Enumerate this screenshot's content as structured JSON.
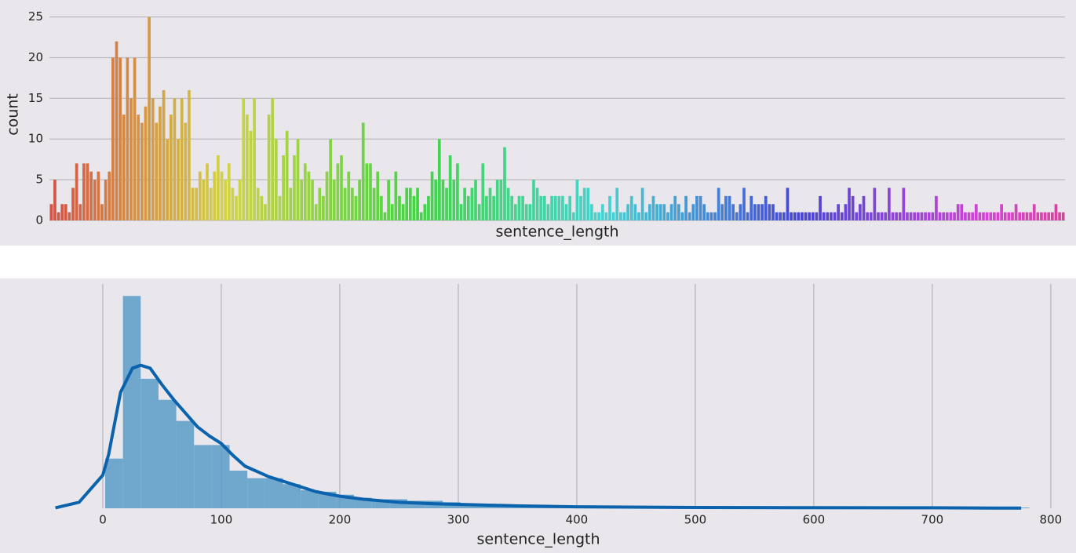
{
  "chart_data": [
    {
      "type": "bar",
      "xlabel": "sentence_length",
      "ylabel": "count",
      "palette": "husl",
      "values": [
        2,
        5,
        1,
        2,
        2,
        1,
        4,
        7,
        2,
        7,
        7,
        6,
        5,
        6,
        2,
        5,
        6,
        20,
        22,
        20,
        13,
        20,
        15,
        20,
        13,
        12,
        14,
        25,
        15,
        12,
        14,
        16,
        10,
        13,
        15,
        10,
        15,
        12,
        16,
        4,
        4,
        6,
        5,
        7,
        4,
        6,
        8,
        6,
        5,
        7,
        4,
        3,
        5,
        15,
        13,
        11,
        15,
        4,
        3,
        2,
        13,
        15,
        10,
        3,
        8,
        11,
        4,
        8,
        10,
        5,
        7,
        6,
        5,
        2,
        4,
        3,
        6,
        10,
        5,
        7,
        8,
        4,
        6,
        4,
        3,
        5,
        12,
        7,
        7,
        4,
        6,
        3,
        1,
        5,
        2,
        6,
        3,
        2,
        4,
        4,
        3,
        4,
        1,
        2,
        3,
        6,
        5,
        10,
        5,
        4,
        8,
        5,
        7,
        2,
        4,
        3,
        4,
        5,
        2,
        7,
        3,
        4,
        3,
        5,
        5,
        9,
        4,
        3,
        2,
        3,
        3,
        2,
        2,
        5,
        4,
        3,
        3,
        2,
        3,
        3,
        3,
        3,
        2,
        3,
        1,
        5,
        3,
        4,
        4,
        2,
        1,
        1,
        2,
        1,
        3,
        1,
        4,
        1,
        1,
        2,
        3,
        2,
        1,
        4,
        1,
        2,
        3,
        2,
        2,
        2,
        1,
        2,
        3,
        2,
        1,
        3,
        1,
        2,
        3,
        3,
        2,
        1,
        1,
        1,
        4,
        2,
        3,
        3,
        2,
        1,
        2,
        4,
        1,
        3,
        2,
        2,
        2,
        3,
        2,
        2,
        1,
        1,
        1,
        4,
        1,
        1,
        1,
        1,
        1,
        1,
        1,
        1,
        3,
        1,
        1,
        1,
        1,
        2,
        1,
        2,
        4,
        3,
        1,
        2,
        3,
        1,
        1,
        4,
        1,
        1,
        1,
        4,
        1,
        1,
        1,
        4,
        1,
        1,
        1,
        1,
        1,
        1,
        1,
        1,
        3,
        1,
        1,
        1,
        1,
        1,
        2,
        2,
        1,
        1,
        1,
        2,
        1,
        1,
        1,
        1,
        1,
        1,
        2,
        1,
        1,
        1,
        2,
        1,
        1,
        1,
        1,
        2,
        1,
        1,
        1,
        1,
        1,
        2,
        1,
        1
      ],
      "ylim": [
        0,
        26.6
      ],
      "yticks": [
        0,
        5,
        10,
        15,
        20,
        25
      ],
      "grid": true
    },
    {
      "type": "histogram",
      "xlabel": "sentence_length",
      "color": "#5b9bc8",
      "bins": [
        2,
        17,
        32,
        47,
        62,
        77,
        92,
        107,
        122,
        137,
        152,
        167,
        182,
        197,
        212,
        227,
        242,
        257,
        272,
        287,
        302,
        317,
        332,
        347,
        362,
        377,
        392,
        407,
        422,
        437,
        452,
        467,
        482,
        497,
        512,
        527,
        542,
        557,
        572,
        587,
        602,
        617,
        632,
        647,
        662,
        677,
        692,
        707,
        722,
        737,
        752,
        767,
        782
      ],
      "values": [
        0.0033,
        0.0141,
        0.0086,
        0.0072,
        0.0058,
        0.0042,
        0.0042,
        0.0025,
        0.002,
        0.002,
        0.0016,
        0.0012,
        0.0011,
        0.0009,
        0.0007,
        0.0006,
        0.0006,
        0.0005,
        0.0005,
        0.0004,
        0.0003,
        0.0003,
        0.0002,
        0.0002,
        0.0002,
        0.0002,
        0.0001,
        0.0001,
        5e-05,
        5e-05,
        5e-05,
        5e-05,
        5e-05,
        5e-05,
        5e-05,
        5e-05,
        5e-05,
        5e-05,
        0,
        5e-05,
        0,
        0,
        5e-05,
        0,
        0,
        0,
        5e-05,
        0,
        0,
        0,
        0,
        5e-05
      ],
      "kde": {
        "color": "#0b62ad",
        "x": [
          -40,
          -20,
          0,
          5,
          15,
          25,
          32,
          40,
          50,
          60,
          70,
          80,
          90,
          100,
          110,
          120,
          140,
          160,
          180,
          200,
          220,
          250,
          280,
          300,
          350,
          400,
          500,
          600,
          700,
          775
        ],
        "values": [
          3e-05,
          0.0004,
          0.0022,
          0.0036,
          0.0077,
          0.0093,
          0.0095,
          0.0093,
          0.0082,
          0.0072,
          0.0063,
          0.0054,
          0.0048,
          0.0043,
          0.0035,
          0.0028,
          0.0021,
          0.0016,
          0.0011,
          0.0008,
          0.0006,
          0.0004,
          0.0003,
          0.00026,
          0.00016,
          0.0001,
          5e-05,
          4e-05,
          3e-05,
          1e-05
        ]
      },
      "xlim": [
        -43.7,
        814
      ],
      "ylim": [
        0,
        0.015
      ],
      "xticks": [
        0,
        100,
        200,
        300,
        400,
        500,
        600,
        700,
        800
      ],
      "grid": true
    }
  ]
}
